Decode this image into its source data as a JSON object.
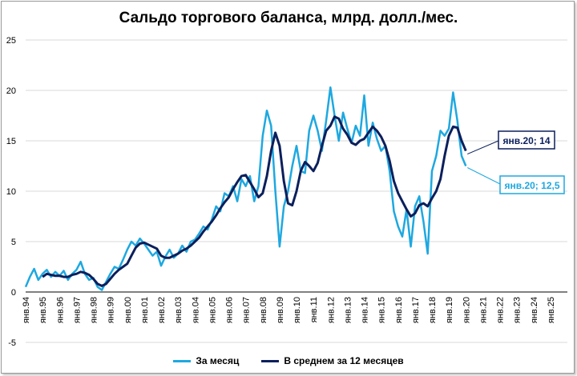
{
  "title": "Сальдо торгового баланса, млрд. долл./мес.",
  "colors": {
    "monthly": "#1ea8e0",
    "avg": "#0b1f5c",
    "grid": "#d9d9d9",
    "axis": "#000000"
  },
  "legend": {
    "monthly_label": "За месяц",
    "avg_label": "В среднем за 12 месяцев"
  },
  "annotations": {
    "avg_label": "янв.20; 14",
    "monthly_label": "янв.20; 12,5"
  },
  "chart_data": {
    "type": "line",
    "title": "Сальдо торгового баланса, млрд. долл./мес.",
    "ylim": [
      -5,
      25
    ],
    "yticks": [
      -5,
      0,
      5,
      10,
      15,
      20,
      25
    ],
    "xlim": [
      1994,
      2026
    ],
    "grid": true,
    "legend_position": "bottom",
    "xtick_labels": [
      "янв.94",
      "янв.95",
      "янв.96",
      "янв.97",
      "янв.98",
      "янв.99",
      "янв.00",
      "янв.01",
      "янв.02",
      "янв.03",
      "янв.04",
      "янв.05",
      "янв.06",
      "янв.07",
      "янв.08",
      "янв.09",
      "янв.10",
      "янв.11",
      "янв.12",
      "янв.13",
      "янв.14",
      "янв.15",
      "янв.16",
      "янв.17",
      "янв.18",
      "янв.19",
      "янв.20",
      "янв.21",
      "янв.22",
      "янв.23",
      "янв.24",
      "янв.25"
    ],
    "xtick_values": [
      1994,
      1995,
      1996,
      1997,
      1998,
      1999,
      2000,
      2001,
      2002,
      2003,
      2004,
      2005,
      2006,
      2007,
      2008,
      2009,
      2010,
      2011,
      2012,
      2013,
      2014,
      2015,
      2016,
      2017,
      2018,
      2019,
      2020,
      2021,
      2022,
      2023,
      2024,
      2025
    ],
    "series": [
      {
        "name": "За месяц",
        "x": [
          1994.0,
          1994.25,
          1994.5,
          1994.75,
          1995.0,
          1995.25,
          1995.5,
          1995.75,
          1996.0,
          1996.25,
          1996.5,
          1996.75,
          1997.0,
          1997.25,
          1997.5,
          1997.75,
          1998.0,
          1998.25,
          1998.5,
          1998.75,
          1999.0,
          1999.25,
          1999.5,
          1999.75,
          2000.0,
          2000.25,
          2000.5,
          2000.75,
          2001.0,
          2001.25,
          2001.5,
          2001.75,
          2002.0,
          2002.25,
          2002.5,
          2002.75,
          2003.0,
          2003.25,
          2003.5,
          2003.75,
          2004.0,
          2004.25,
          2004.5,
          2004.75,
          2005.0,
          2005.25,
          2005.5,
          2005.75,
          2006.0,
          2006.25,
          2006.5,
          2006.75,
          2007.0,
          2007.25,
          2007.5,
          2007.75,
          2008.0,
          2008.25,
          2008.5,
          2008.75,
          2009.0,
          2009.25,
          2009.5,
          2009.75,
          2010.0,
          2010.25,
          2010.5,
          2010.75,
          2011.0,
          2011.25,
          2011.5,
          2011.75,
          2012.0,
          2012.25,
          2012.5,
          2012.75,
          2013.0,
          2013.25,
          2013.5,
          2013.75,
          2014.0,
          2014.25,
          2014.5,
          2014.75,
          2015.0,
          2015.25,
          2015.5,
          2015.75,
          2016.0,
          2016.25,
          2016.5,
          2016.75,
          2017.0,
          2017.25,
          2017.5,
          2017.75,
          2018.0,
          2018.25,
          2018.5,
          2018.75,
          2019.0,
          2019.25,
          2019.5,
          2019.75,
          2020.0
        ],
        "values": [
          0.5,
          1.5,
          2.3,
          1.2,
          1.8,
          2.2,
          1.5,
          2.0,
          1.6,
          2.1,
          1.2,
          1.8,
          2.2,
          3.0,
          1.8,
          1.2,
          1.4,
          0.5,
          0.2,
          1.0,
          1.8,
          2.5,
          2.3,
          3.2,
          4.2,
          5.0,
          4.6,
          5.3,
          4.8,
          4.2,
          3.6,
          4.0,
          2.6,
          3.5,
          4.2,
          3.4,
          3.8,
          4.6,
          4.0,
          5.0,
          5.2,
          5.8,
          6.5,
          6.2,
          7.2,
          8.5,
          8.0,
          9.8,
          9.5,
          10.5,
          9.0,
          11.2,
          10.5,
          11.5,
          9.0,
          10.5,
          15.5,
          18.0,
          16.5,
          10.0,
          4.5,
          8.5,
          10.0,
          12.5,
          14.5,
          12.0,
          11.8,
          16.0,
          17.5,
          16.0,
          14.0,
          17.0,
          20.3,
          17.5,
          15.0,
          17.8,
          16.2,
          14.8,
          16.5,
          15.5,
          19.5,
          14.5,
          16.8,
          15.2,
          14.0,
          14.5,
          12.0,
          8.0,
          6.5,
          5.5,
          8.2,
          4.5,
          8.5,
          9.5,
          7.0,
          3.8,
          12.0,
          13.5,
          16.0,
          15.5,
          16.2,
          19.8,
          17.0,
          13.5,
          12.5
        ]
      },
      {
        "name": "В среднем за 12 месяцев",
        "x": [
          1995.0,
          1995.25,
          1995.5,
          1995.75,
          1996.0,
          1996.25,
          1996.5,
          1996.75,
          1997.0,
          1997.25,
          1997.5,
          1997.75,
          1998.0,
          1998.25,
          1998.5,
          1998.75,
          1999.0,
          1999.25,
          1999.5,
          1999.75,
          2000.0,
          2000.25,
          2000.5,
          2000.75,
          2001.0,
          2001.25,
          2001.5,
          2001.75,
          2002.0,
          2002.25,
          2002.5,
          2002.75,
          2003.0,
          2003.25,
          2003.5,
          2003.75,
          2004.0,
          2004.25,
          2004.5,
          2004.75,
          2005.0,
          2005.25,
          2005.5,
          2005.75,
          2006.0,
          2006.25,
          2006.5,
          2006.75,
          2007.0,
          2007.25,
          2007.5,
          2007.75,
          2008.0,
          2008.25,
          2008.5,
          2008.75,
          2009.0,
          2009.25,
          2009.5,
          2009.75,
          2010.0,
          2010.25,
          2010.5,
          2010.75,
          2011.0,
          2011.25,
          2011.5,
          2011.75,
          2012.0,
          2012.25,
          2012.5,
          2012.75,
          2013.0,
          2013.25,
          2013.5,
          2013.75,
          2014.0,
          2014.25,
          2014.5,
          2014.75,
          2015.0,
          2015.25,
          2015.5,
          2015.75,
          2016.0,
          2016.25,
          2016.5,
          2016.75,
          2017.0,
          2017.25,
          2017.5,
          2017.75,
          2018.0,
          2018.25,
          2018.5,
          2018.75,
          2019.0,
          2019.25,
          2019.5,
          2019.75,
          2020.0
        ],
        "values": [
          1.5,
          1.8,
          1.7,
          1.6,
          1.6,
          1.5,
          1.5,
          1.7,
          1.8,
          2.0,
          1.9,
          1.7,
          1.3,
          0.8,
          0.6,
          0.8,
          1.3,
          1.8,
          2.2,
          2.5,
          2.8,
          3.6,
          4.4,
          4.8,
          4.9,
          4.7,
          4.5,
          4.3,
          3.6,
          3.4,
          3.4,
          3.6,
          3.8,
          4.1,
          4.3,
          4.6,
          5.0,
          5.4,
          6.0,
          6.5,
          7.0,
          7.6,
          8.3,
          8.9,
          9.4,
          10.2,
          10.9,
          11.5,
          11.6,
          10.9,
          10.2,
          9.4,
          9.8,
          11.5,
          14.0,
          15.8,
          14.5,
          11.0,
          8.8,
          8.6,
          10.0,
          12.0,
          12.9,
          12.5,
          12.0,
          12.8,
          14.5,
          16.0,
          16.5,
          17.4,
          17.2,
          16.2,
          15.6,
          14.8,
          14.6,
          15.0,
          15.2,
          15.8,
          16.4,
          16.0,
          15.4,
          14.5,
          13.0,
          11.0,
          9.8,
          9.0,
          8.2,
          7.5,
          7.8,
          8.6,
          8.8,
          8.5,
          9.3,
          10.0,
          11.2,
          13.5,
          15.5,
          16.4,
          16.3,
          15.0,
          14.0
        ]
      }
    ]
  }
}
